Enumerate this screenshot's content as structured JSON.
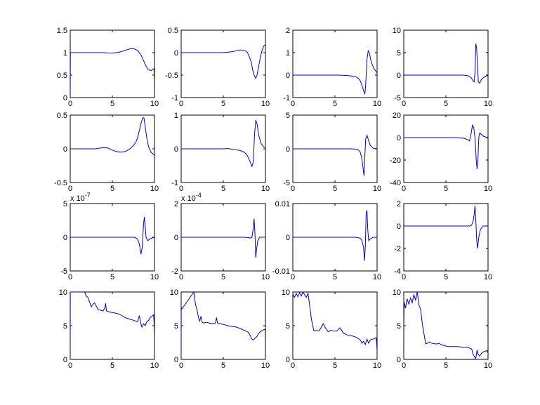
{
  "figure": {
    "background": "#ffffff",
    "line_color": "#0000cc"
  },
  "chart_data": [
    {
      "type": "line",
      "xlim": [
        0,
        10
      ],
      "ylim": [
        0,
        1.5
      ],
      "xticks": [
        "0",
        "5",
        "10"
      ],
      "yticks": [
        "0",
        "0.5",
        "1",
        "1.5"
      ],
      "exponent": "",
      "x": [
        0,
        0.02,
        0.5,
        1,
        2,
        3,
        4,
        4.5,
        5,
        5.5,
        6,
        6.5,
        7,
        7.5,
        8,
        8.4,
        8.8,
        9,
        9.2,
        9.4,
        9.6,
        9.8,
        9.95,
        10
      ],
      "y": [
        0,
        1,
        1,
        1,
        1,
        1,
        1,
        0.99,
        0.99,
        1,
        1.02,
        1.05,
        1.08,
        1.09,
        1.05,
        0.95,
        0.78,
        0.7,
        0.63,
        0.61,
        0.6,
        0.63,
        0.65,
        0.3
      ]
    },
    {
      "type": "line",
      "xlim": [
        0,
        10
      ],
      "ylim": [
        -1,
        0.5
      ],
      "xticks": [
        "0",
        "5",
        "10"
      ],
      "yticks": [
        "-1",
        "-0.5",
        "0",
        "0.5"
      ],
      "exponent": "",
      "x": [
        0,
        1,
        2,
        3,
        4,
        5,
        5.5,
        6,
        6.5,
        7,
        7.5,
        7.8,
        8,
        8.3,
        8.5,
        8.7,
        8.85,
        9,
        9.2,
        9.4,
        9.6,
        9.8,
        10
      ],
      "y": [
        0,
        0,
        0,
        0,
        0,
        0,
        0.01,
        0.02,
        0.04,
        0.06,
        0.05,
        0.02,
        -0.05,
        -0.2,
        -0.4,
        -0.52,
        -0.57,
        -0.5,
        -0.3,
        -0.1,
        0.05,
        0.15,
        0.18
      ]
    },
    {
      "type": "line",
      "xlim": [
        0,
        10
      ],
      "ylim": [
        -1,
        2
      ],
      "xticks": [
        "0",
        "5",
        "10"
      ],
      "yticks": [
        "-1",
        "0",
        "1",
        "2"
      ],
      "exponent": "",
      "x": [
        0,
        1,
        2,
        3,
        4,
        5,
        5.5,
        6,
        6.5,
        7,
        7.5,
        7.8,
        8,
        8.2,
        8.4,
        8.55,
        8.65,
        8.8,
        8.95,
        9.1,
        9.3,
        9.6,
        9.9,
        10
      ],
      "y": [
        0,
        0,
        0,
        0,
        0,
        0,
        0,
        -0.01,
        -0.02,
        -0.04,
        -0.08,
        -0.15,
        -0.25,
        -0.45,
        -0.7,
        -0.85,
        -0.4,
        0.7,
        1.1,
        0.95,
        0.6,
        0.3,
        0.15,
        0.1
      ]
    },
    {
      "type": "line",
      "xlim": [
        0,
        10
      ],
      "ylim": [
        -5,
        10
      ],
      "xticks": [
        "0",
        "5",
        "10"
      ],
      "yticks": [
        "-5",
        "0",
        "5",
        "10"
      ],
      "exponent": "",
      "x": [
        0,
        2,
        4,
        5,
        6,
        7,
        7.5,
        7.8,
        8,
        8.2,
        8.35,
        8.45,
        8.55,
        8.65,
        8.75,
        8.85,
        9,
        9.2,
        9.5,
        10
      ],
      "y": [
        0,
        0,
        0,
        0,
        0,
        0,
        -0.1,
        -0.3,
        -0.6,
        -1.2,
        -1.5,
        0.5,
        7,
        6,
        2,
        -1.5,
        -1.8,
        -1,
        -0.5,
        0
      ]
    },
    {
      "type": "line",
      "xlim": [
        0,
        10
      ],
      "ylim": [
        -0.5,
        0.5
      ],
      "xticks": [
        "0",
        "5",
        "10"
      ],
      "yticks": [
        "-0.5",
        "0",
        "0.5"
      ],
      "exponent": "",
      "x": [
        0,
        1,
        2,
        3,
        3.5,
        4,
        4.5,
        5,
        5.5,
        6,
        6.5,
        7,
        7.5,
        7.8,
        8,
        8.2,
        8.4,
        8.6,
        8.75,
        8.9,
        9.1,
        9.3,
        9.6,
        10
      ],
      "y": [
        0,
        0,
        0,
        0,
        0.01,
        0.02,
        0.01,
        -0.02,
        -0.04,
        -0.05,
        -0.04,
        -0.01,
        0.05,
        0.1,
        0.17,
        0.27,
        0.38,
        0.46,
        0.46,
        0.33,
        0.15,
        0.03,
        -0.05,
        -0.1
      ]
    },
    {
      "type": "line",
      "xlim": [
        0,
        10
      ],
      "ylim": [
        -1,
        1
      ],
      "xticks": [
        "0",
        "5",
        "10"
      ],
      "yticks": [
        "-1",
        "0",
        "1"
      ],
      "exponent": "",
      "x": [
        0,
        1,
        2,
        3,
        4,
        5,
        5.5,
        6,
        6.5,
        7,
        7.5,
        7.8,
        8,
        8.2,
        8.4,
        8.55,
        8.7,
        8.85,
        9,
        9.2,
        9.5,
        9.8,
        10
      ],
      "y": [
        0,
        0,
        0,
        0,
        0,
        0,
        0.01,
        -0.01,
        -0.03,
        -0.05,
        -0.1,
        -0.18,
        -0.28,
        -0.4,
        -0.52,
        -0.4,
        0.4,
        0.85,
        0.75,
        0.4,
        0.15,
        0.05,
        0.04
      ]
    },
    {
      "type": "line",
      "xlim": [
        0,
        10
      ],
      "ylim": [
        -5,
        5
      ],
      "xticks": [
        "0",
        "5",
        "10"
      ],
      "yticks": [
        "-5",
        "0",
        "5"
      ],
      "exponent": "",
      "x": [
        0,
        2,
        4,
        5,
        6,
        7,
        7.5,
        7.8,
        8,
        8.2,
        8.35,
        8.45,
        8.55,
        8.65,
        8.8,
        9,
        9.2,
        9.5,
        10
      ],
      "y": [
        0,
        0,
        0,
        0,
        0,
        0,
        -0.05,
        -0.2,
        -0.5,
        -1.5,
        -3,
        -4,
        -1,
        1.5,
        2,
        1.2,
        0.5,
        0.1,
        0
      ]
    },
    {
      "type": "line",
      "xlim": [
        0,
        10
      ],
      "ylim": [
        -40,
        20
      ],
      "xticks": [
        "0",
        "5",
        "10"
      ],
      "yticks": [
        "-40",
        "-20",
        "0",
        "20"
      ],
      "exponent": "",
      "x": [
        0,
        2,
        4,
        5,
        6,
        7,
        7.3,
        7.6,
        7.8,
        8,
        8.15,
        8.3,
        8.45,
        8.6,
        8.7,
        8.8,
        8.9,
        9,
        9.2,
        9.5,
        10
      ],
      "y": [
        0,
        0,
        0,
        0,
        0,
        -0.5,
        -1,
        -2,
        -3,
        4,
        11,
        9,
        0,
        -20,
        -28,
        -20,
        0,
        4,
        3,
        1,
        0
      ]
    },
    {
      "type": "line",
      "xlim": [
        0,
        10
      ],
      "ylim": [
        -5,
        5
      ],
      "xticks": [
        "0",
        "5",
        "10"
      ],
      "yticks": [
        "-5",
        "0",
        "5"
      ],
      "exponent": "x 10^-7",
      "x": [
        0,
        2,
        4,
        6,
        7,
        7.5,
        7.8,
        8,
        8.2,
        8.4,
        8.55,
        8.7,
        8.8,
        8.9,
        9,
        9.2,
        9.5,
        10
      ],
      "y": [
        0,
        0,
        0,
        0,
        0,
        0,
        -0.1,
        -0.3,
        -1,
        -2.5,
        -1.5,
        2,
        3,
        1.5,
        0,
        -0.5,
        -0.2,
        0
      ]
    },
    {
      "type": "line",
      "xlim": [
        0,
        10
      ],
      "ylim": [
        -2,
        2
      ],
      "xticks": [
        "0",
        "5",
        "10"
      ],
      "yticks": [
        "-2",
        "0",
        "2"
      ],
      "exponent": "x 10^-4",
      "x": [
        0,
        2,
        4,
        6,
        7,
        7.5,
        8,
        8.2,
        8.4,
        8.55,
        8.65,
        8.75,
        8.85,
        8.95,
        9.1,
        9.3,
        9.6,
        10
      ],
      "y": [
        0,
        0,
        0,
        0,
        0,
        0,
        -0.02,
        -0.05,
        0,
        0.5,
        1.1,
        0.3,
        -1.2,
        -0.7,
        -0.2,
        0,
        0,
        0
      ]
    },
    {
      "type": "line",
      "xlim": [
        0,
        10
      ],
      "ylim": [
        -0.01,
        0.01
      ],
      "xticks": [
        "0",
        "5",
        "10"
      ],
      "yticks": [
        "-0.01",
        "0",
        "0.01"
      ],
      "exponent": "",
      "x": [
        0,
        2,
        4,
        6,
        7,
        7.5,
        8,
        8.2,
        8.4,
        8.5,
        8.6,
        8.7,
        8.8,
        8.9,
        9,
        9.2,
        9.5,
        10
      ],
      "y": [
        0,
        0,
        0,
        0,
        0,
        0,
        -0.0003,
        -0.001,
        -0.003,
        -0.007,
        -0.003,
        0.007,
        0.008,
        0.002,
        -0.001,
        -0.0005,
        0,
        0
      ]
    },
    {
      "type": "line",
      "xlim": [
        0,
        10
      ],
      "ylim": [
        -4,
        2
      ],
      "xticks": [
        "0",
        "5",
        "10"
      ],
      "yticks": [
        "-4",
        "-2",
        "0",
        "2"
      ],
      "exponent": "",
      "x": [
        0,
        2,
        4,
        6,
        7,
        7.5,
        7.8,
        8,
        8.2,
        8.35,
        8.45,
        8.55,
        8.65,
        8.75,
        8.9,
        9.1,
        9.4,
        9.7,
        10
      ],
      "y": [
        0,
        0,
        0,
        0,
        0,
        0,
        0,
        0.05,
        0.3,
        1,
        1.8,
        0.5,
        -1.2,
        -2,
        -1,
        -0.3,
        0,
        0,
        0
      ]
    },
    {
      "type": "line",
      "xlim": [
        0,
        10
      ],
      "ylim": [
        0,
        10
      ],
      "xticks": [
        "0",
        "5",
        "10"
      ],
      "yticks": [
        "0",
        "5",
        "10"
      ],
      "exponent": "",
      "x": [
        0,
        0.01,
        0.05,
        1.7,
        1.9,
        2.1,
        2.3,
        2.5,
        2.7,
        2.9,
        3.1,
        3.3,
        3.6,
        3.9,
        4.1,
        4.2,
        4.3,
        4.5,
        4.8,
        5.2,
        5.6,
        6,
        6.5,
        7,
        7.5,
        8,
        8.2,
        8.4,
        8.5,
        8.7,
        8.9,
        9.1,
        9.3,
        9.5,
        9.7,
        9.9,
        9.97,
        10
      ],
      "y": [
        0,
        10,
        10,
        10,
        9.4,
        9.2,
        8.5,
        7.8,
        8.2,
        8.4,
        7.9,
        7.4,
        7.3,
        7.2,
        7.6,
        8.3,
        7.2,
        7.1,
        7,
        6.9,
        6.8,
        6.6,
        6.2,
        6,
        5.8,
        5.6,
        6.5,
        5.2,
        4.8,
        5.3,
        5,
        5.6,
        5.8,
        6.2,
        6.4,
        6.6,
        5,
        3.2
      ]
    },
    {
      "type": "line",
      "xlim": [
        0,
        10
      ],
      "ylim": [
        0,
        10
      ],
      "xticks": [
        "0",
        "5",
        "10"
      ],
      "yticks": [
        "0",
        "5",
        "10"
      ],
      "exponent": "",
      "x": [
        0,
        0.01,
        0.05,
        0.1,
        1.5,
        1.7,
        1.9,
        2.1,
        2.2,
        2.35,
        2.5,
        2.7,
        3,
        3.3,
        3.7,
        4,
        4.1,
        4.2,
        4.3,
        4.6,
        5,
        5.5,
        6,
        6.5,
        7,
        7.5,
        8,
        8.2,
        8.4,
        8.6,
        8.8,
        9,
        9.2,
        9.5,
        9.8,
        9.97,
        10
      ],
      "y": [
        0,
        7.3,
        7.6,
        7.5,
        10,
        8.2,
        7.2,
        6,
        5.7,
        6.4,
        5.5,
        5.4,
        5.5,
        5.4,
        5.3,
        5.3,
        5.6,
        6.2,
        5.4,
        5.3,
        5.2,
        5,
        4.9,
        4.8,
        4.6,
        4.3,
        4,
        3.5,
        3,
        2.9,
        3.2,
        3.4,
        3.9,
        4.2,
        4.4,
        4.5,
        2.1
      ]
    },
    {
      "type": "line",
      "xlim": [
        0,
        10
      ],
      "ylim": [
        0,
        10
      ],
      "xticks": [
        "0",
        "5",
        "10"
      ],
      "yticks": [
        "0",
        "5",
        "10"
      ],
      "exponent": "",
      "x": [
        0,
        0.01,
        0.05,
        0.2,
        0.4,
        0.6,
        0.8,
        1,
        1.2,
        1.4,
        1.6,
        1.8,
        2,
        2.2,
        2.5,
        2.8,
        3.1,
        3.3,
        3.6,
        3.9,
        4.2,
        4.5,
        4.8,
        5.2,
        5.6,
        6,
        6.5,
        7,
        7.5,
        8,
        8.2,
        8.4,
        8.6,
        8.8,
        9,
        9.2,
        9.5,
        9.7,
        9.9,
        10
      ],
      "y": [
        0,
        9.4,
        9.6,
        9.2,
        9.8,
        9.3,
        9.9,
        9.4,
        10,
        9.6,
        9.2,
        9.8,
        8,
        6,
        4.2,
        4.3,
        4.2,
        4.6,
        5.3,
        4.6,
        4.1,
        4.3,
        4.2,
        4.2,
        4.7,
        3.9,
        3.6,
        3.5,
        3.3,
        2.9,
        2.4,
        2.7,
        2.2,
        3,
        2.4,
        2.9,
        3,
        3.1,
        3.2,
        1.4
      ]
    },
    {
      "type": "line",
      "xlim": [
        0,
        10
      ],
      "ylim": [
        0,
        10
      ],
      "xticks": [
        "0",
        "5",
        "10"
      ],
      "yticks": [
        "0",
        "5",
        "10"
      ],
      "exponent": "",
      "x": [
        0,
        0.01,
        0.05,
        0.2,
        0.4,
        0.6,
        0.8,
        1,
        1.2,
        1.4,
        1.6,
        1.8,
        2,
        2.2,
        2.4,
        2.6,
        2.8,
        3,
        3.3,
        3.7,
        4,
        4.2,
        4.4,
        4.7,
        5.2,
        5.8,
        6.4,
        7,
        7.5,
        8,
        8.1,
        8.2,
        8.4,
        8.5,
        8.6,
        8.7,
        8.8,
        9,
        9.3,
        9.6,
        9.9,
        10
      ],
      "y": [
        0,
        5.5,
        8.5,
        7.6,
        9,
        8.2,
        9.1,
        8.4,
        9.6,
        8.8,
        10,
        8.1,
        7.4,
        5.3,
        3.8,
        2.3,
        2.4,
        2.6,
        2.4,
        2.3,
        2.3,
        2.4,
        2.2,
        2.1,
        1.9,
        1.9,
        1.9,
        1.8,
        1.8,
        1.6,
        1.4,
        0.8,
        0.4,
        0.1,
        0.5,
        1.4,
        0.8,
        0.5,
        1,
        1.2,
        1.3,
        0.9
      ]
    }
  ]
}
